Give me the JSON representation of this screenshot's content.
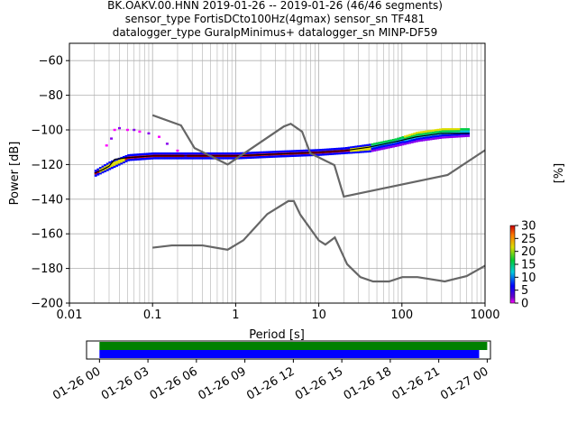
{
  "title": {
    "line1": "BK.OAKV.00.HNN   2019-01-26 -- 2019-01-26  (46/46 segments)",
    "line2": "sensor_type FortisDCto100Hz(4gmax) sensor_sn TF481",
    "line3": "datalogger_type GuralpMinimus+ datalogger_sn MINP-DF59"
  },
  "chart_data": [
    {
      "type": "heatmap",
      "xlabel": "Period [s]",
      "ylabel": "Power [dB]",
      "x_scale": "log",
      "xlim": [
        0.01,
        1000
      ],
      "ylim": [
        -200,
        -50
      ],
      "x_tick_labels": [
        "0.01",
        "0.1",
        "1",
        "10",
        "100",
        "1000"
      ],
      "x_tick_values": [
        0.01,
        0.1,
        1,
        10,
        100,
        1000
      ],
      "y_ticks": [
        -200,
        -180,
        -160,
        -140,
        -120,
        -100,
        -80,
        -60
      ],
      "grid": true,
      "colorbar": {
        "label": "[%]",
        "range": [
          0,
          30
        ],
        "ticks": [
          0,
          5,
          10,
          15,
          20,
          25,
          30
        ]
      },
      "noise_models": [
        {
          "kind": "high",
          "points": [
            [
              0.1,
              -91.5
            ],
            [
              0.22,
              -97.4
            ],
            [
              0.32,
              -110.5
            ],
            [
              0.8,
              -120
            ],
            [
              3.8,
              -98
            ],
            [
              4.6,
              -96.5
            ],
            [
              6.3,
              -101
            ],
            [
              7.9,
              -113.5
            ],
            [
              15.4,
              -120.3
            ],
            [
              20,
              -138.5
            ],
            [
              354.8,
              -126
            ],
            [
              10000,
              -80
            ]
          ]
        },
        {
          "kind": "low",
          "points": [
            [
              0.1,
              -168
            ],
            [
              0.17,
              -166.7
            ],
            [
              0.4,
              -166.7
            ],
            [
              0.8,
              -169.2
            ],
            [
              1.24,
              -163.7
            ],
            [
              2.4,
              -148.6
            ],
            [
              4.3,
              -141.1
            ],
            [
              5,
              -141.1
            ],
            [
              6,
              -149
            ],
            [
              10,
              -163.8
            ],
            [
              12,
              -166.2
            ],
            [
              15.6,
              -162.1
            ],
            [
              21.9,
              -177.5
            ],
            [
              31.6,
              -185
            ],
            [
              45,
              -187.5
            ],
            [
              70,
              -187.5
            ],
            [
              101,
              -185
            ],
            [
              154,
              -185
            ],
            [
              328,
              -187.5
            ],
            [
              600,
              -184.4
            ],
            [
              10000,
              -151.5
            ]
          ]
        }
      ],
      "median_psd": [
        [
          0.02,
          -125
        ],
        [
          0.025,
          -123
        ],
        [
          0.03,
          -121
        ],
        [
          0.035,
          -117
        ],
        [
          0.05,
          -116
        ],
        [
          0.1,
          -115
        ],
        [
          0.3,
          -115
        ],
        [
          1,
          -115
        ],
        [
          3,
          -114
        ],
        [
          10,
          -113
        ],
        [
          20,
          -112
        ],
        [
          40,
          -110
        ],
        [
          80,
          -107
        ],
        [
          150,
          -104
        ],
        [
          300,
          -102
        ],
        [
          650,
          -102
        ]
      ],
      "psd_band_edges": {
        "period": [
          0.02,
          0.03,
          0.05,
          0.1,
          0.3,
          1,
          3,
          10,
          20,
          40,
          80,
          150,
          300,
          650
        ],
        "lower": [
          -127,
          -123,
          -118,
          -117,
          -117,
          -117,
          -116,
          -115,
          -114,
          -113,
          -110,
          -107,
          -105,
          -104
        ],
        "upper": [
          -123,
          -118,
          -114,
          -113,
          -113,
          -113,
          -112,
          -111,
          -110,
          -108,
          -105,
          -101,
          -99,
          -99
        ]
      },
      "psd_scatter_tail": [
        [
          0.028,
          -109
        ],
        [
          0.032,
          -105
        ],
        [
          0.035,
          -100
        ],
        [
          0.04,
          -99
        ],
        [
          0.05,
          -100
        ],
        [
          0.06,
          -100
        ],
        [
          0.07,
          -101
        ],
        [
          0.09,
          -102
        ],
        [
          0.12,
          -104
        ],
        [
          0.15,
          -108
        ],
        [
          0.2,
          -112
        ],
        [
          0.25,
          -115
        ]
      ]
    },
    {
      "type": "bar",
      "orientation": "horizontal",
      "x_type": "time",
      "xlim": [
        "2019-01-25T23:12",
        "2019-01-27T00:12"
      ],
      "x_tick_labels": [
        "01-26 00",
        "01-26 03",
        "01-26 06",
        "01-26 09",
        "01-26 12",
        "01-26 15",
        "01-26 18",
        "01-26 21",
        "01-27 00"
      ],
      "bars": [
        {
          "start": "2019-01-26T00:00",
          "end": "2019-01-27T00:00",
          "color": "#008000"
        },
        {
          "start": "2019-01-26T00:00",
          "end": "2019-01-26T23:30",
          "color": "#0000ff"
        }
      ]
    }
  ]
}
